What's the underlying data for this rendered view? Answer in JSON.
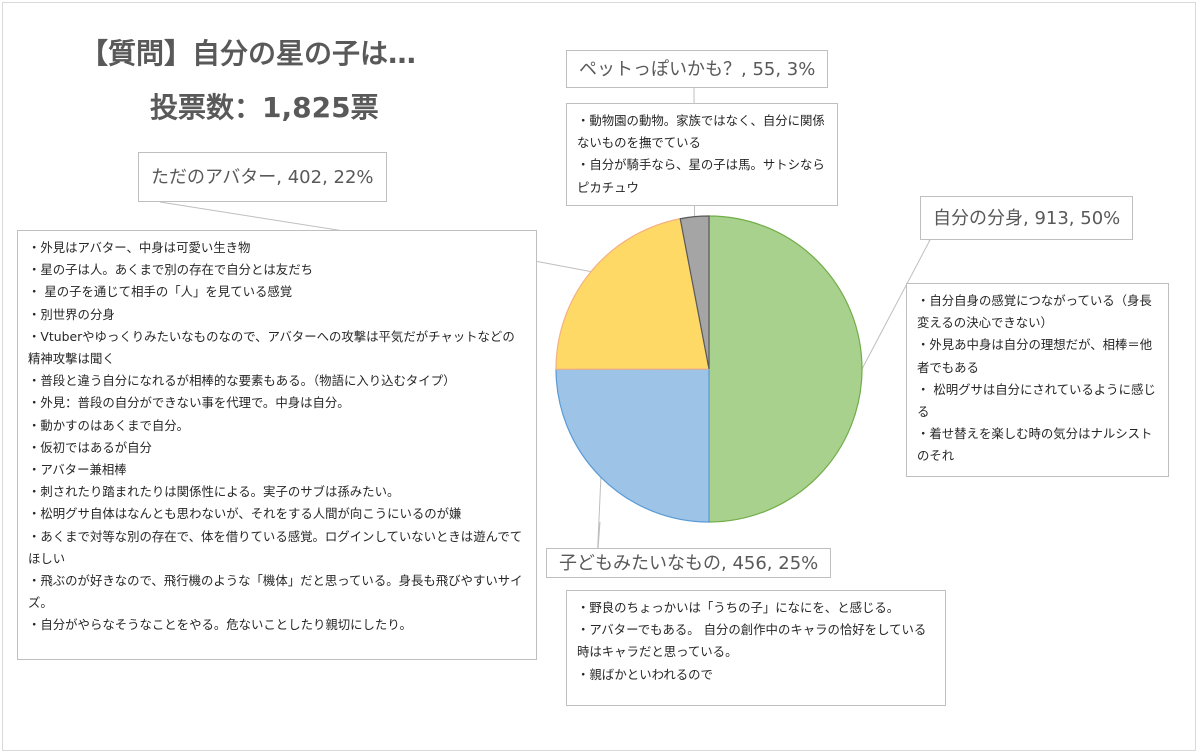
{
  "title": "【質問】自分の星の子は…",
  "subtitle": "投票数：1,825票",
  "chart_data": {
    "type": "pie",
    "slices": [
      {
        "name": "自分の分身",
        "count": 913,
        "percent": "50%",
        "label": "自分の分身, 913, 50%",
        "color": "#a9d18e",
        "stroke": "#70ad47"
      },
      {
        "name": "子どもみたいなもの",
        "count": 456,
        "percent": "25%",
        "label": "子どもみたいなもの, 456, 25%",
        "color": "#9dc3e6",
        "stroke": "#5b9bd5"
      },
      {
        "name": "ただのアバター",
        "count": 402,
        "percent": "22%",
        "label": "ただのアバター, 402, 22%",
        "color": "#ffd966",
        "stroke": "#f4b183"
      },
      {
        "name": "ペットっぽいかも？",
        "count": 55,
        "percent": "3%",
        "label": "ペットっぽいかも？, 55, 3%",
        "color": "#a5a5a5",
        "stroke": "#595959"
      }
    ]
  },
  "notes": {
    "pet": [
      "・動物園の動物。家族ではなく、自分に関係ないものを撫でている",
      "・自分が騎手なら、星の子は馬。サトシならピカチュウ"
    ],
    "self": [
      "・自分自身の感覚につながっている（身長変えるの決心できない）",
      "・外見あ中身は自分の理想だが、相棒＝他者でもある",
      "・ 松明グサは自分にされているように感じる",
      "・着せ替えを楽しむ時の気分はナルシストのそれ"
    ],
    "child": [
      "・野良のちょっかいは「うちの子」になにを、と感じる。",
      "・アバターでもある。 自分の創作中のキャラの恰好をしている時はキャラだと思っている。",
      " ・親ばかといわれるので"
    ],
    "avatar": [
      "・外見はアバター、中身は可愛い生き物",
      "・星の子は人。あくまで別の存在で自分とは友だち",
      "・ 星の子を通じて相手の「人」を見ている感覚",
      "・別世界の分身",
      "・Vtuberやゆっくりみたいなものなので、アバターへの攻撃は平気だがチャットなどの精神攻撃は聞く",
      "・普段と違う自分になれるが相棒的な要素もある。（物語に入り込むタイプ）",
      "・外見：普段の自分ができない事を代理で。中身は自分。",
      "・動かすのはあくまで自分。",
      "・仮初ではあるが自分",
      "・アバター兼相棒",
      "・刺されたり踏まれたりは関係性による。実子のサブは孫みたい。",
      "・松明グサ自体はなんとも思わないが、それをする人間が向こうにいるのが嫌",
      "・あくまで対等な別の存在で、体を借りている感覚。ログインしていないときは遊んでてほしい",
      "・飛ぶのが好きなので、飛行機のような「機体」だと思っている。身長も飛びやすいサイズ。",
      "・自分がやらなそうなことをやる。危ないことしたり親切にしたり。"
    ]
  }
}
